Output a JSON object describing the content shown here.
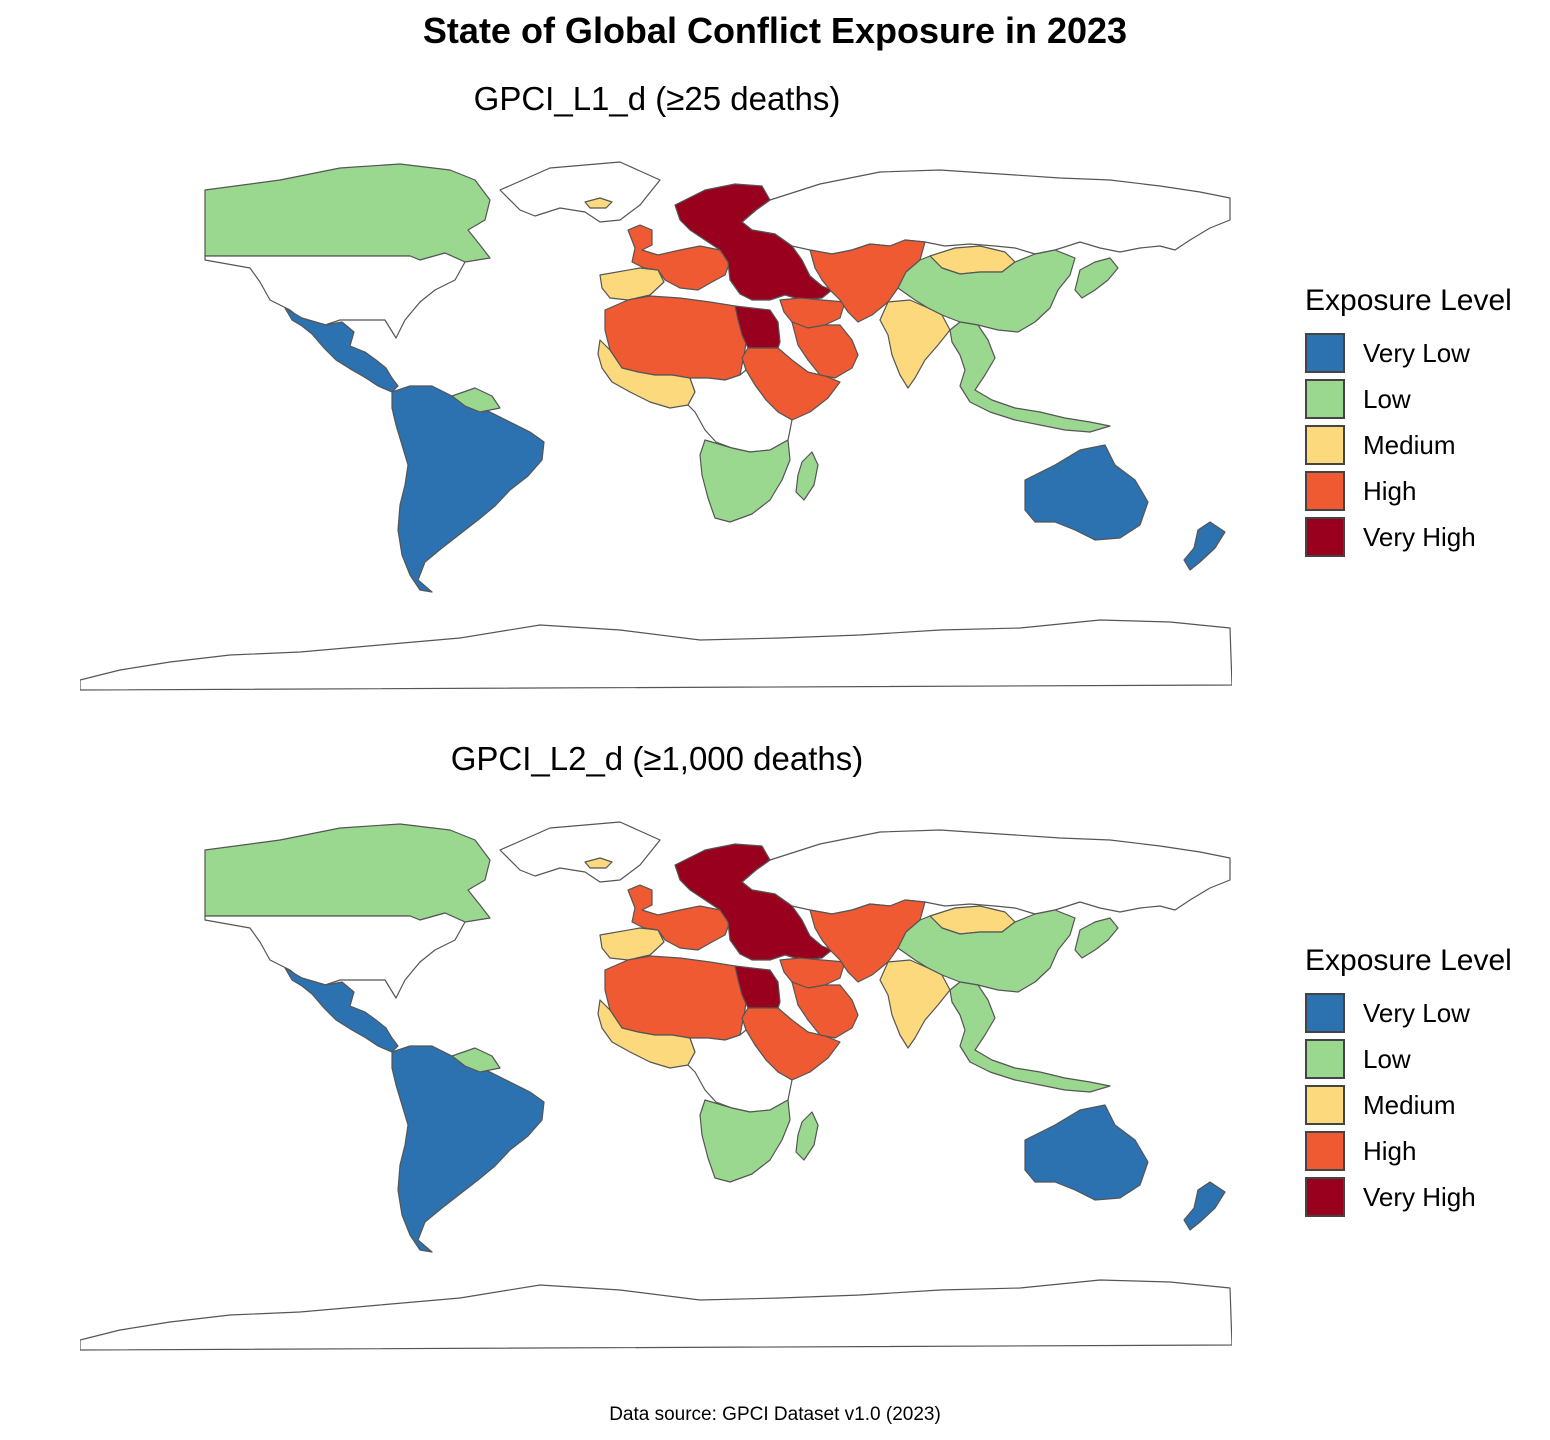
{
  "title": "State of Global Conflict Exposure in 2023",
  "caption": "Data source: GPCI Dataset v1.0 (2023)",
  "colors": {
    "very_low": "#2C72B0",
    "low": "#9AD890",
    "medium": "#FCD97C",
    "high": "#F05A33",
    "very_high": "#98001E",
    "none": "#FFFFFF",
    "border": "#555555"
  },
  "panels": [
    {
      "subtitle": "GPCI_L1_d (≥25 deaths)",
      "legend_title": "Exposure Level",
      "levels": [
        "Very Low",
        "Low",
        "Medium",
        "High",
        "Very High"
      ],
      "regions": {
        "canada": "low",
        "usa": "none",
        "greenland": "none",
        "mexico_central_america": "very_low",
        "south_america": "very_low",
        "guianas": "low",
        "europe_west": "high",
        "europe_east": "very_high",
        "iberia": "medium",
        "iceland": "medium",
        "north_africa": "high",
        "west_africa": "medium",
        "egypt": "very_high",
        "sudan_horn": "high",
        "central_africa": "none",
        "southern_africa": "low",
        "madagascar": "low",
        "middle_east": "high",
        "arabia": "high",
        "central_asia": "high",
        "russia": "none",
        "mongolia": "medium",
        "china": "low",
        "india": "medium",
        "southeast_asia": "low",
        "japan": "low",
        "australia": "very_low",
        "new_zealand": "very_low",
        "antarctica": "none"
      }
    },
    {
      "subtitle": "GPCI_L2_d (≥1,000 deaths)",
      "legend_title": "Exposure Level",
      "levels": [
        "Very Low",
        "Low",
        "Medium",
        "High",
        "Very High"
      ],
      "regions": {
        "canada": "low",
        "usa": "none",
        "greenland": "none",
        "mexico_central_america": "very_low",
        "south_america": "very_low",
        "guianas": "low",
        "europe_west": "high",
        "europe_east": "very_high",
        "iberia": "medium",
        "iceland": "medium",
        "north_africa": "high",
        "west_africa": "medium",
        "egypt": "very_high",
        "sudan_horn": "high",
        "central_africa": "none",
        "southern_africa": "low",
        "madagascar": "low",
        "middle_east": "high",
        "arabia": "high",
        "central_asia": "high",
        "russia": "none",
        "mongolia": "medium",
        "china": "low",
        "india": "medium",
        "southeast_asia": "low",
        "japan": "low",
        "australia": "very_low",
        "new_zealand": "very_low",
        "antarctica": "none"
      }
    }
  ]
}
